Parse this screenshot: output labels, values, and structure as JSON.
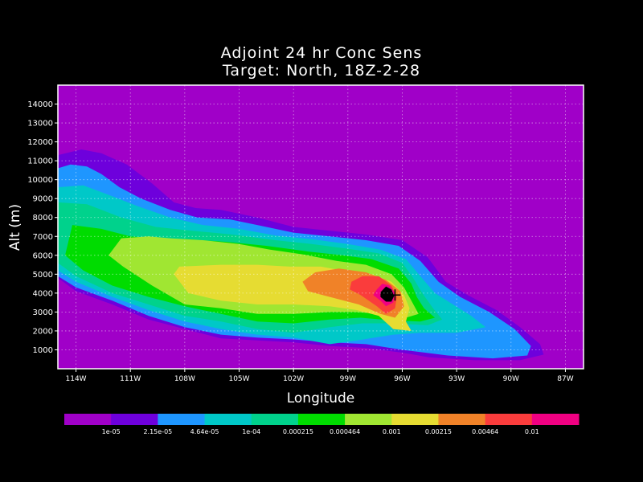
{
  "chart_data": {
    "type": "contour",
    "title": "Adjoint 24 hr Conc Sens",
    "subtitle": "Target: North, 18Z-2-28",
    "xlabel": "Longitude",
    "ylabel": "Alt (m)",
    "xlim": [
      -115,
      -86
    ],
    "ylim": [
      0,
      15000
    ],
    "x_ticks": [
      {
        "value": -114,
        "label": "114W"
      },
      {
        "value": -111,
        "label": "111W"
      },
      {
        "value": -108,
        "label": "108W"
      },
      {
        "value": -105,
        "label": "105W"
      },
      {
        "value": -102,
        "label": "102W"
      },
      {
        "value": -99,
        "label": "99W"
      },
      {
        "value": -96,
        "label": "96W"
      },
      {
        "value": -93,
        "label": "93W"
      },
      {
        "value": -90,
        "label": "90W"
      },
      {
        "value": -87,
        "label": "87W"
      }
    ],
    "y_ticks": [
      1000,
      2000,
      3000,
      4000,
      5000,
      6000,
      7000,
      8000,
      9000,
      10000,
      11000,
      12000,
      13000,
      14000
    ],
    "grid": true,
    "target_marker": {
      "lon": -96.4,
      "alt": 3900
    },
    "color_levels": [
      {
        "label": "1e-05",
        "color": "#a000c8"
      },
      {
        "label": "2.15e-05",
        "color": "#6e00dc"
      },
      {
        "label": "4.64e-05",
        "color": "#1e96ff"
      },
      {
        "label": "1e-04",
        "color": "#00c8c8"
      },
      {
        "label": "0.000215",
        "color": "#00d28c"
      },
      {
        "label": "0.000464",
        "color": "#00dc00"
      },
      {
        "label": "0.001",
        "color": "#a0e632"
      },
      {
        "label": "0.00215",
        "color": "#e6dc32"
      },
      {
        "label": "0.00464",
        "color": "#f08228"
      },
      {
        "label": "0.01",
        "color": "#fa3c3c"
      }
    ],
    "background_color": "#a000c8",
    "top_color": "#f00082",
    "contours": [
      {
        "level": 1,
        "points": [
          [
            -115,
            4800
          ],
          [
            -115,
            11300
          ],
          [
            -113.7,
            11600
          ],
          [
            -112.6,
            11400
          ],
          [
            -111.2,
            10800
          ],
          [
            -109.8,
            9800
          ],
          [
            -108.6,
            8800
          ],
          [
            -107.4,
            8500
          ],
          [
            -106,
            8400
          ],
          [
            -104,
            8000
          ],
          [
            -102,
            7500
          ],
          [
            -100,
            7300
          ],
          [
            -98,
            7100
          ],
          [
            -96,
            6800
          ],
          [
            -94.6,
            5900
          ],
          [
            -93.6,
            4600
          ],
          [
            -92.4,
            3900
          ],
          [
            -90.8,
            3100
          ],
          [
            -89.5,
            2200
          ],
          [
            -88.4,
            1300
          ],
          [
            -88.2,
            750
          ],
          [
            -89.5,
            450
          ],
          [
            -92,
            450
          ],
          [
            -94.5,
            600
          ],
          [
            -96,
            850
          ],
          [
            -98,
            1100
          ],
          [
            -100,
            1200
          ],
          [
            -102,
            1400
          ],
          [
            -104,
            1500
          ],
          [
            -106,
            1600
          ],
          [
            -108,
            2100
          ],
          [
            -110,
            2600
          ],
          [
            -112,
            3400
          ],
          [
            -114,
            4100
          ]
        ]
      },
      {
        "level": 2,
        "points": [
          [
            -115,
            4900
          ],
          [
            -115,
            10600
          ],
          [
            -114.3,
            10800
          ],
          [
            -113.4,
            10700
          ],
          [
            -112.6,
            10300
          ],
          [
            -111.6,
            9600
          ],
          [
            -110.4,
            9000
          ],
          [
            -108.8,
            8400
          ],
          [
            -107.3,
            8000
          ],
          [
            -105.5,
            7900
          ],
          [
            -104,
            7600
          ],
          [
            -102,
            7200
          ],
          [
            -100,
            7000
          ],
          [
            -98,
            6800
          ],
          [
            -96.2,
            6500
          ],
          [
            -95,
            5700
          ],
          [
            -94,
            4600
          ],
          [
            -92.8,
            3800
          ],
          [
            -91.2,
            3000
          ],
          [
            -89.8,
            2100
          ],
          [
            -88.9,
            1200
          ],
          [
            -89.1,
            700
          ],
          [
            -91,
            550
          ],
          [
            -93.5,
            700
          ],
          [
            -96,
            1000
          ],
          [
            -98,
            1300
          ],
          [
            -100,
            1400
          ],
          [
            -102,
            1550
          ],
          [
            -104,
            1650
          ],
          [
            -106,
            1800
          ],
          [
            -108,
            2200
          ],
          [
            -110,
            2800
          ],
          [
            -112,
            3600
          ],
          [
            -114,
            4300
          ]
        ]
      },
      {
        "level": 3,
        "points": [
          [
            -115,
            5200
          ],
          [
            -115,
            9600
          ],
          [
            -113.6,
            9700
          ],
          [
            -112.2,
            9200
          ],
          [
            -110.6,
            8600
          ],
          [
            -108.8,
            8000
          ],
          [
            -107,
            7600
          ],
          [
            -105,
            7400
          ],
          [
            -103,
            7050
          ],
          [
            -101,
            6850
          ],
          [
            -99,
            6600
          ],
          [
            -97.2,
            6300
          ],
          [
            -95.8,
            5800
          ],
          [
            -95,
            4900
          ],
          [
            -94.2,
            4000
          ],
          [
            -93.2,
            3400
          ],
          [
            -92.2,
            2800
          ],
          [
            -91.4,
            2200
          ],
          [
            -93,
            1900
          ],
          [
            -95,
            1900
          ],
          [
            -96.5,
            1800
          ],
          [
            -98.5,
            1500
          ],
          [
            -100,
            1300
          ],
          [
            -102,
            1650
          ],
          [
            -104,
            1800
          ],
          [
            -106,
            2100
          ],
          [
            -108,
            2500
          ],
          [
            -110,
            3100
          ],
          [
            -112,
            3800
          ],
          [
            -114,
            4600
          ]
        ]
      },
      {
        "level": 4,
        "points": [
          [
            -115,
            5600
          ],
          [
            -115,
            8800
          ],
          [
            -113.4,
            8700
          ],
          [
            -111.5,
            8000
          ],
          [
            -109.6,
            7500
          ],
          [
            -107.6,
            7300
          ],
          [
            -105.4,
            7100
          ],
          [
            -103,
            6800
          ],
          [
            -101,
            6600
          ],
          [
            -99,
            6350
          ],
          [
            -97.3,
            6100
          ],
          [
            -96,
            5600
          ],
          [
            -95.4,
            4800
          ],
          [
            -94.9,
            4000
          ],
          [
            -94.3,
            3200
          ],
          [
            -93.8,
            2600
          ],
          [
            -94.6,
            2300
          ],
          [
            -96.4,
            2400
          ],
          [
            -98.2,
            2400
          ],
          [
            -100,
            2200
          ],
          [
            -102,
            1900
          ],
          [
            -104,
            2100
          ],
          [
            -106,
            2500
          ],
          [
            -108,
            2800
          ],
          [
            -110,
            3400
          ],
          [
            -112,
            4000
          ],
          [
            -114,
            4900
          ]
        ]
      },
      {
        "level": 5,
        "points": [
          [
            -114.6,
            6000
          ],
          [
            -114.2,
            7600
          ],
          [
            -112.6,
            7400
          ],
          [
            -111,
            7000
          ],
          [
            -109.5,
            6900
          ],
          [
            -107.8,
            6850
          ],
          [
            -105.6,
            6700
          ],
          [
            -103.5,
            6500
          ],
          [
            -101.2,
            6200
          ],
          [
            -99.3,
            6000
          ],
          [
            -97.7,
            5800
          ],
          [
            -96.2,
            5300
          ],
          [
            -95.5,
            4500
          ],
          [
            -95.2,
            3800
          ],
          [
            -94.8,
            3200
          ],
          [
            -94.2,
            2700
          ],
          [
            -95,
            2500
          ],
          [
            -96.5,
            2550
          ],
          [
            -98.3,
            2700
          ],
          [
            -100,
            2600
          ],
          [
            -102,
            2400
          ],
          [
            -104,
            2500
          ],
          [
            -106,
            2900
          ],
          [
            -108,
            3300
          ],
          [
            -110,
            3800
          ],
          [
            -112,
            4400
          ],
          [
            -113.6,
            5200
          ]
        ]
      },
      {
        "level": 6,
        "points": [
          [
            -112.2,
            6000
          ],
          [
            -111.5,
            6900
          ],
          [
            -110,
            7000
          ],
          [
            -108.8,
            6900
          ],
          [
            -107,
            6800
          ],
          [
            -105,
            6600
          ],
          [
            -103.3,
            6300
          ],
          [
            -101.5,
            6050
          ],
          [
            -99.6,
            5700
          ],
          [
            -98,
            5500
          ],
          [
            -96.6,
            5000
          ],
          [
            -95.9,
            4300
          ],
          [
            -95.5,
            3600
          ],
          [
            -95.1,
            2900
          ],
          [
            -95.8,
            2700
          ],
          [
            -97.2,
            2900
          ],
          [
            -98.6,
            3000
          ],
          [
            -100,
            3000
          ],
          [
            -102,
            2900
          ],
          [
            -104,
            2900
          ],
          [
            -106,
            3200
          ],
          [
            -108,
            3400
          ],
          [
            -109.8,
            4400
          ],
          [
            -111.4,
            5400
          ]
        ]
      },
      {
        "level": 7,
        "points": [
          [
            -108.6,
            5000
          ],
          [
            -108.3,
            5400
          ],
          [
            -106,
            5500
          ],
          [
            -104,
            5500
          ],
          [
            -102.2,
            5400
          ],
          [
            -100.5,
            5400
          ],
          [
            -99.3,
            5200
          ],
          [
            -97.7,
            5000
          ],
          [
            -96.6,
            4600
          ],
          [
            -95.9,
            3900
          ],
          [
            -95.6,
            3200
          ],
          [
            -95.8,
            2500
          ],
          [
            -95.5,
            2000
          ],
          [
            -96.5,
            2100
          ],
          [
            -97.3,
            2800
          ],
          [
            -98.5,
            3100
          ],
          [
            -100,
            3300
          ],
          [
            -102,
            3400
          ],
          [
            -104,
            3400
          ],
          [
            -106,
            3600
          ],
          [
            -107.8,
            4000
          ]
        ]
      },
      {
        "level": 8,
        "points": [
          [
            -101.5,
            4600
          ],
          [
            -100.8,
            5100
          ],
          [
            -99.5,
            5300
          ],
          [
            -98,
            5100
          ],
          [
            -96.9,
            4700
          ],
          [
            -96.1,
            4100
          ],
          [
            -95.9,
            3300
          ],
          [
            -96.4,
            2700
          ],
          [
            -97.2,
            2900
          ],
          [
            -98.4,
            3400
          ],
          [
            -100,
            3800
          ],
          [
            -101.2,
            4100
          ]
        ]
      },
      {
        "level": 9,
        "points": [
          [
            -98.8,
            4600
          ],
          [
            -98.2,
            4900
          ],
          [
            -97.3,
            4900
          ],
          [
            -96.6,
            4400
          ],
          [
            -96.3,
            3800
          ],
          [
            -96.4,
            3200
          ],
          [
            -96.9,
            2900
          ],
          [
            -97.4,
            3300
          ],
          [
            -98.3,
            3900
          ],
          [
            -98.9,
            4200
          ]
        ]
      },
      {
        "level": 10,
        "points": [
          [
            -97.4,
            4200
          ],
          [
            -97.1,
            4500
          ],
          [
            -96.7,
            4400
          ],
          [
            -96.4,
            4000
          ],
          [
            -96.5,
            3500
          ],
          [
            -96.9,
            3300
          ],
          [
            -97.2,
            3600
          ],
          [
            -97.6,
            3900
          ]
        ]
      },
      {
        "level": 11,
        "points": [
          [
            -97.2,
            4050
          ],
          [
            -96.9,
            4350
          ],
          [
            -96.6,
            4200
          ],
          [
            -96.45,
            3850
          ],
          [
            -96.6,
            3550
          ],
          [
            -96.9,
            3550
          ],
          [
            -97.2,
            3800
          ]
        ]
      }
    ]
  }
}
